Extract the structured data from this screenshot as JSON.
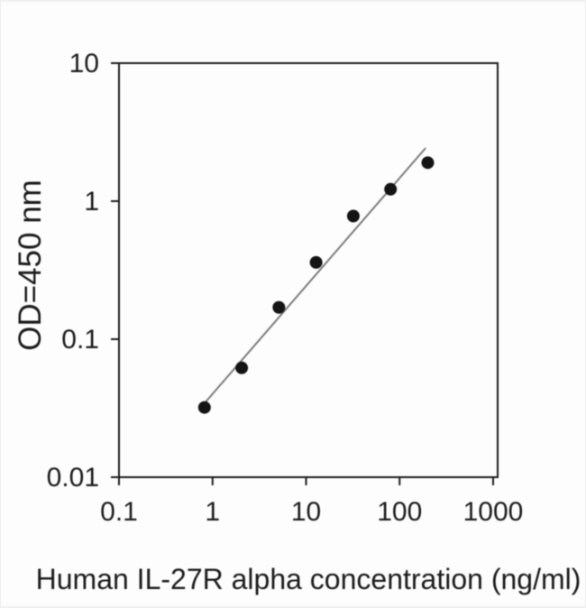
{
  "chart_data": {
    "type": "scatter",
    "title": "",
    "xlabel": "Human IL-27R alpha concentration (ng/ml)",
    "ylabel": "OD=450 nm",
    "x_scale": "log",
    "y_scale": "log",
    "xlim": [
      0.1,
      1000
    ],
    "ylim": [
      0.01,
      10
    ],
    "grid": false,
    "legend": "none",
    "x_ticks": [
      {
        "value": 0.1,
        "label": "0.1"
      },
      {
        "value": 1,
        "label": "1"
      },
      {
        "value": 10,
        "label": "10"
      },
      {
        "value": 100,
        "label": "100"
      },
      {
        "value": 1000,
        "label": "1000"
      }
    ],
    "y_ticks": [
      {
        "value": 10,
        "label": "10"
      },
      {
        "value": 1,
        "label": "1"
      },
      {
        "value": 0.1,
        "label": "0.1"
      },
      {
        "value": 0.01,
        "label": "0.01"
      }
    ],
    "points": [
      {
        "x": 0.82,
        "y": 0.032
      },
      {
        "x": 2.05,
        "y": 0.062
      },
      {
        "x": 5.12,
        "y": 0.17
      },
      {
        "x": 12.8,
        "y": 0.36
      },
      {
        "x": 32,
        "y": 0.78
      },
      {
        "x": 80,
        "y": 1.22
      },
      {
        "x": 200,
        "y": 1.9
      }
    ],
    "fit_line": {
      "x1": 0.84,
      "y1": 0.035,
      "x2": 190,
      "y2": 2.43
    },
    "colors": {
      "marker": "#141414",
      "fit_line": "#7a7a7a",
      "axis": "#1c1c1c",
      "text": "#1c1c1c"
    }
  }
}
